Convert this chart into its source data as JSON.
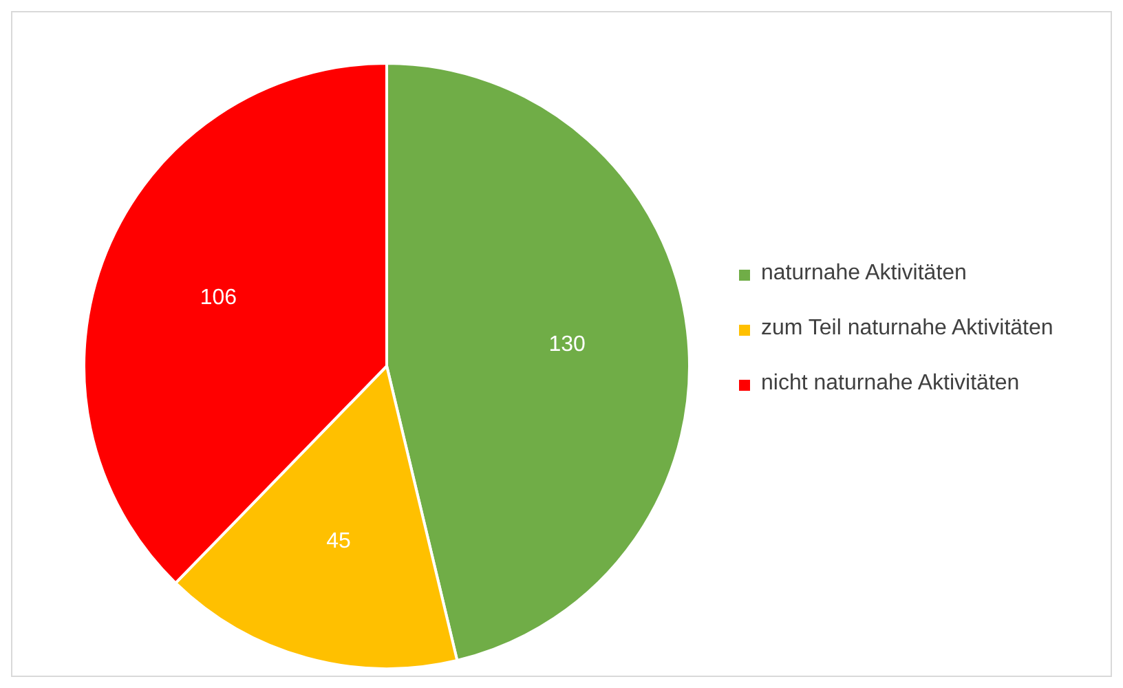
{
  "chart_data": {
    "type": "pie",
    "categories": [
      "naturnahe Aktivitäten",
      "zum Teil naturnahe Aktivitäten",
      "nicht naturnahe Aktivitäten"
    ],
    "values": [
      130,
      45,
      106
    ],
    "colors": [
      "#70ad47",
      "#ffc000",
      "#ff0000"
    ],
    "data_labels": true,
    "legend": "right"
  }
}
